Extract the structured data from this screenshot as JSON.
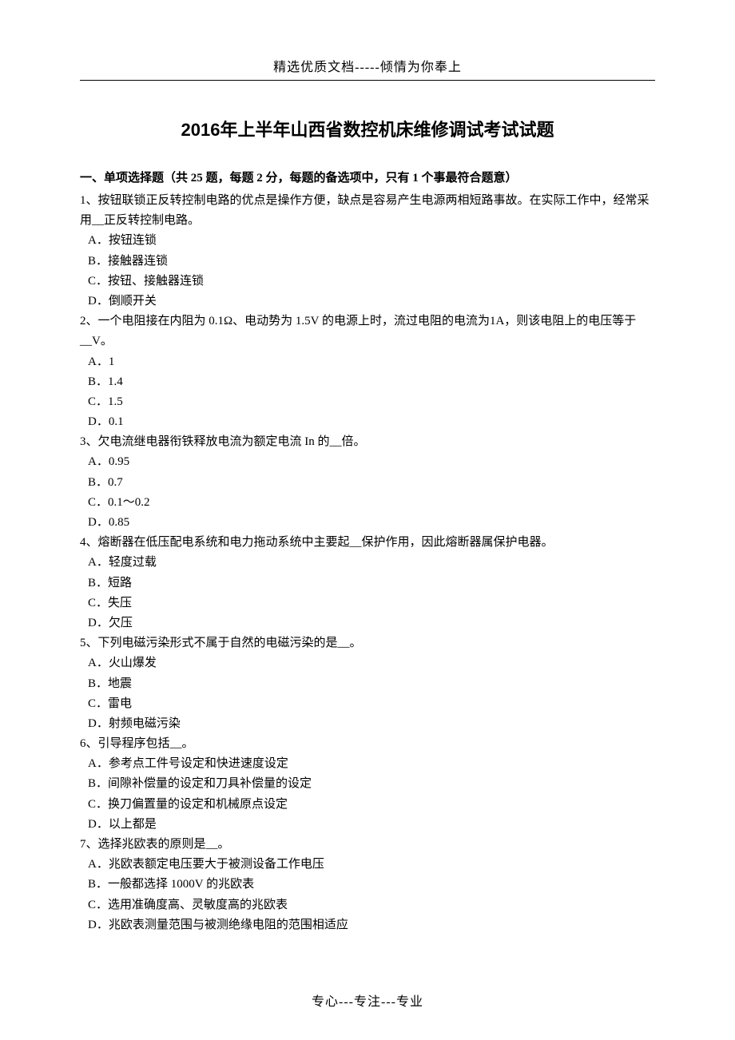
{
  "header": "精选优质文档-----倾情为你奉上",
  "title": "2016年上半年山西省数控机床维修调试考试试题",
  "section_heading": "一、单项选择题（共 25 题，每题 2 分，每题的备选项中，只有 1 个事最符合题意）",
  "footer": "专心---专注---专业",
  "questions": [
    {
      "text": "1、按钮联锁正反转控制电路的优点是操作方便，缺点是容易产生电源两相短路事故。在实际工作中，经常采用__正反转控制电路。",
      "options": [
        "A．按钮连锁",
        "B．接触器连锁",
        "C．按钮、接触器连锁",
        "D．倒顺开关"
      ]
    },
    {
      "text": "2、一个电阻接在内阻为 0.1Ω、电动势为 1.5V 的电源上时，流过电阻的电流为1A，则该电阻上的电压等于__V。",
      "options": [
        "A．1",
        "B．1.4",
        "C．1.5",
        "D．0.1"
      ]
    },
    {
      "text": "3、欠电流继电器衔铁释放电流为额定电流 In 的__倍。",
      "options": [
        "A．0.95",
        "B．0.7",
        "C．0.1～0.2",
        "D．0.85"
      ]
    },
    {
      "text": "4、熔断器在低压配电系统和电力拖动系统中主要起__保护作用，因此熔断器属保护电器。",
      "options": [
        "A．轻度过载",
        "B．短路",
        "C．失压",
        "D．欠压"
      ]
    },
    {
      "text": "5、下列电磁污染形式不属于自然的电磁污染的是__。",
      "options": [
        "A．火山爆发",
        "B．地震",
        "C．雷电",
        "D．射频电磁污染"
      ]
    },
    {
      "text": "6、引导程序包括__。",
      "options": [
        "A．参考点工件号设定和快进速度设定",
        "B．间隙补偿量的设定和刀具补偿量的设定",
        "C．换刀偏置量的设定和机械原点设定",
        "D．以上都是"
      ]
    },
    {
      "text": "7、选择兆欧表的原则是__。",
      "options": [
        "A．兆欧表额定电压要大于被测设备工作电压",
        "B．一般都选择 1000V 的兆欧表",
        "C．选用准确度高、灵敏度高的兆欧表",
        "D．兆欧表测量范围与被测绝缘电阻的范围相适应"
      ]
    }
  ],
  "colors": {
    "text": "#000000",
    "background": "#ffffff"
  },
  "typography": {
    "body_font": "SimSun",
    "title_font": "SimHei",
    "header_fontsize": 16,
    "title_fontsize": 22,
    "body_fontsize": 15,
    "footer_fontsize": 16
  }
}
